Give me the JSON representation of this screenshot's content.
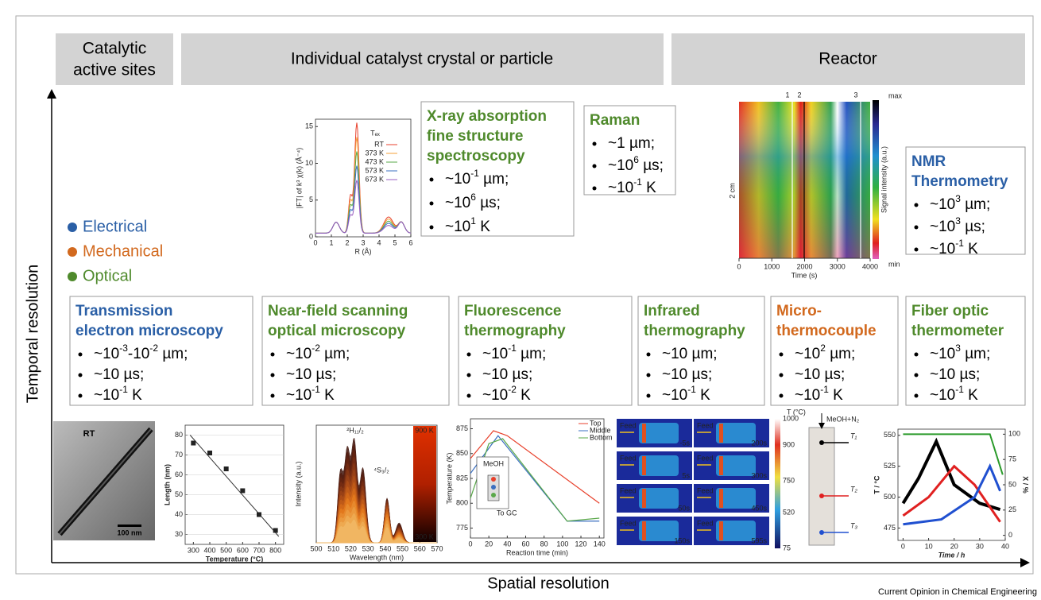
{
  "header": {
    "sites": [
      "Catalytic",
      "active sites"
    ],
    "crystal": "Individual catalyst crystal or particle",
    "reactor": "Reactor"
  },
  "axes": {
    "y": "Temporal resolution",
    "x": "Spatial resolution"
  },
  "legend": [
    {
      "label": "Electrical",
      "color": "#2a5fa6"
    },
    {
      "label": "Mechanical",
      "color": "#d2691e"
    },
    {
      "label": "Optical",
      "color": "#4f8a2c"
    }
  ],
  "techniques": [
    {
      "title": [
        "X-ray absorption",
        "fine structure",
        "spectroscopy"
      ],
      "color": "#4f8a2c",
      "bullets": [
        [
          "~10",
          "-1",
          " µm;"
        ],
        [
          "~10",
          "6",
          " µs;"
        ],
        [
          "~10",
          "1",
          " K"
        ]
      ]
    },
    {
      "title": [
        "Raman"
      ],
      "color": "#4f8a2c",
      "bullets": [
        [
          "~1 µm;"
        ],
        [
          "~10",
          "6",
          " µs;"
        ],
        [
          "~10",
          "-1",
          " K"
        ]
      ]
    },
    {
      "title": [
        "NMR",
        "Thermometry"
      ],
      "color": "#2a5fa6",
      "bullets": [
        [
          "~10",
          "3",
          " µm;"
        ],
        [
          "~10",
          "3",
          " µs;"
        ],
        [
          "~10",
          "-1",
          " K"
        ]
      ]
    },
    {
      "title": [
        "Transmission",
        "electron microscopy"
      ],
      "color": "#2a5fa6",
      "bullets": [
        [
          "~10",
          "-3",
          "-10",
          "-2",
          " µm;"
        ],
        [
          "~10 µs;"
        ],
        [
          "~10",
          "-1",
          " K"
        ]
      ]
    },
    {
      "title": [
        "Near-field scanning",
        "optical microscopy"
      ],
      "color": "#4f8a2c",
      "bullets": [
        [
          "~10",
          "-2",
          " µm;"
        ],
        [
          "~10 µs;"
        ],
        [
          "~10",
          "-1",
          " K"
        ]
      ]
    },
    {
      "title": [
        "Fluorescence",
        "thermography"
      ],
      "color": "#4f8a2c",
      "bullets": [
        [
          "~10",
          "-1",
          " µm;"
        ],
        [
          "~10 µs;"
        ],
        [
          "~10",
          "-2",
          " K"
        ]
      ]
    },
    {
      "title": [
        "Infrared",
        "thermography"
      ],
      "color": "#4f8a2c",
      "bullets": [
        [
          "~10 µm;"
        ],
        [
          "~10 µs;"
        ],
        [
          "~10",
          "-1",
          " K"
        ]
      ]
    },
    {
      "title": [
        "Micro-",
        "thermocouple"
      ],
      "color": "#d2691e",
      "bullets": [
        [
          "~10",
          "2",
          " µm;"
        ],
        [
          "~10 µs;"
        ],
        [
          "~10",
          "-1",
          " K"
        ]
      ]
    },
    {
      "title": [
        "Fiber optic",
        "thermometer"
      ],
      "color": "#4f8a2c",
      "bullets": [
        [
          "~10",
          "3",
          " µm;"
        ],
        [
          "~10 µs;"
        ],
        [
          "~10",
          "-1",
          " K"
        ]
      ]
    }
  ],
  "plots": {
    "exafs": {
      "ylabel": "|FT| of k³ χ(k) (Å⁻⁴)",
      "xlabel": "R (Å)",
      "xlim": [
        0,
        6
      ],
      "ylim": [
        0,
        16
      ],
      "xticks": [
        0,
        1,
        2,
        3,
        4,
        5,
        6
      ],
      "yticks": [
        0,
        5,
        10,
        15
      ],
      "legend_title": "Tₑₓ",
      "series": [
        {
          "name": "RT",
          "color": "#e8412c"
        },
        {
          "name": "373 K",
          "color": "#f4a23a"
        },
        {
          "name": "473 K",
          "color": "#5aa84a"
        },
        {
          "name": "573 K",
          "color": "#3a6fc0"
        },
        {
          "name": "673 K",
          "color": "#9a5fc0"
        }
      ]
    },
    "heatmap": {
      "ylabel": "2 cm",
      "xlabel": "Time (s)",
      "xlim": [
        0,
        4000
      ],
      "xticks": [
        0,
        1000,
        2000,
        3000,
        4000
      ],
      "colorbar": "Signal intensity (a.u.)",
      "max": "max",
      "min": "min",
      "markers": [
        "1",
        "2",
        "3"
      ]
    },
    "tem": {
      "label": "RT",
      "scale": "100 nm"
    },
    "length": {
      "ylabel": "Length (nm)",
      "xlabel": "Temperature (°C)",
      "xlim": [
        250,
        850
      ],
      "ylim": [
        25,
        85
      ],
      "xticks": [
        300,
        400,
        500,
        600,
        700,
        800
      ],
      "yticks": [
        30,
        40,
        50,
        60,
        70,
        80
      ],
      "points": [
        [
          300,
          76
        ],
        [
          400,
          71
        ],
        [
          500,
          63
        ],
        [
          600,
          52
        ],
        [
          700,
          40
        ],
        [
          800,
          32
        ]
      ]
    },
    "spectrum": {
      "ylabel": "Intensity (a.u.)",
      "xlabel": "Wavelength (nm)",
      "xlim": [
        500,
        570
      ],
      "xticks": [
        500,
        510,
        520,
        530,
        540,
        550,
        560,
        570
      ],
      "peak1": "²H₁₁/₂",
      "peak2": "⁴S₃/₂",
      "cb_top": "900 K",
      "cb_bottom": "300 K"
    },
    "temperature": {
      "ylabel": "Temperature (K)",
      "xlabel": "Reaction time (min)",
      "xlim": [
        0,
        145
      ],
      "ylim": [
        765,
        885
      ],
      "xticks": [
        0,
        20,
        40,
        60,
        80,
        100,
        120,
        140
      ],
      "yticks": [
        775,
        800,
        825,
        850,
        875
      ],
      "legend": [
        {
          "name": "Top",
          "color": "#e8412c"
        },
        {
          "name": "Middle",
          "color": "#3a6fc0"
        },
        {
          "name": "Bottom",
          "color": "#5aa84a"
        }
      ],
      "inset_in": "MeOH",
      "inset_out": "To GC"
    },
    "infrared": {
      "feed": "Feed",
      "times": [
        "-5s",
        "5s",
        "50s",
        "150s",
        "200s",
        "300s",
        "450s",
        "595s"
      ],
      "cb_title": "T (°C)",
      "cb_ticks": [
        1000,
        900,
        750,
        520,
        75
      ]
    },
    "thermocouple": {
      "inlet": "MeOH+N₂",
      "probes": [
        "T₁",
        "T₂",
        "T₃"
      ]
    },
    "fiber": {
      "ylabel": "T / °C",
      "y2label": "X / %",
      "xlabel": "Time / h",
      "xlim": [
        -2,
        40
      ],
      "ylim": [
        465,
        555
      ],
      "y2lim": [
        -5,
        105
      ],
      "xticks": [
        0,
        10,
        20,
        30,
        40
      ],
      "yticks": [
        475,
        500,
        525,
        550
      ],
      "y2ticks": [
        0,
        25,
        50,
        75,
        100
      ]
    }
  },
  "credit": "Current Opinion in Chemical Engineering"
}
